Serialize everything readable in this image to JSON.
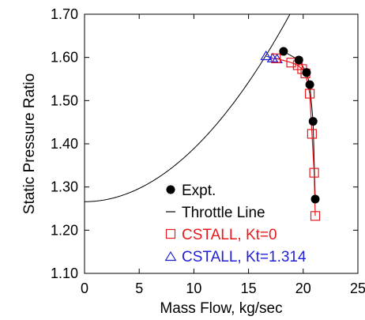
{
  "chart_data": {
    "type": "scatter",
    "xlabel": "Mass Flow, kg/sec",
    "ylabel": "Static Pressure Ratio",
    "xlim": [
      0,
      25
    ],
    "ylim": [
      1.1,
      1.7
    ],
    "xticks": [
      0,
      5,
      10,
      15,
      20,
      25
    ],
    "xtick_labels": [
      "0",
      "5",
      "10",
      "15",
      "20",
      "25"
    ],
    "yticks": [
      1.1,
      1.2,
      1.3,
      1.4,
      1.5,
      1.6,
      1.7
    ],
    "ytick_labels": [
      "1.10",
      "1.20",
      "1.30",
      "1.40",
      "1.50",
      "1.60",
      "1.70"
    ],
    "grid": false,
    "legend_position": "bottom-right",
    "series": [
      {
        "name": "Expt.",
        "marker": "filled-circle",
        "color": "#000000",
        "x": [
          18.2,
          19.6,
          20.3,
          20.6,
          20.9,
          21.1
        ],
        "y": [
          1.614,
          1.594,
          1.565,
          1.537,
          1.452,
          1.272
        ]
      },
      {
        "name": "Throttle Line",
        "marker": "line",
        "color": "#000000",
        "curve": "y = 1.266 + 0.00123 * x^2",
        "x": [
          0,
          2,
          4,
          6,
          8,
          10,
          12,
          14,
          16,
          18,
          19.5
        ],
        "y": [
          1.266,
          1.271,
          1.286,
          1.31,
          1.345,
          1.389,
          1.443,
          1.507,
          1.581,
          1.665,
          1.734
        ]
      },
      {
        "name": "CSTALL, Kt=0",
        "marker": "open-square",
        "color": "#e8191c",
        "x": [
          17.5,
          18.9,
          19.5,
          19.9,
          20.2,
          20.6,
          20.8,
          21.0,
          21.1
        ],
        "y": [
          1.598,
          1.588,
          1.582,
          1.573,
          1.563,
          1.516,
          1.423,
          1.333,
          1.233
        ]
      },
      {
        "name": "CSTALL, Kt=1.314",
        "marker": "open-triangle",
        "color": "#1f1fd6",
        "x": [
          16.6,
          17.2,
          17.6
        ],
        "y": [
          1.603,
          1.598,
          1.596
        ]
      }
    ]
  }
}
